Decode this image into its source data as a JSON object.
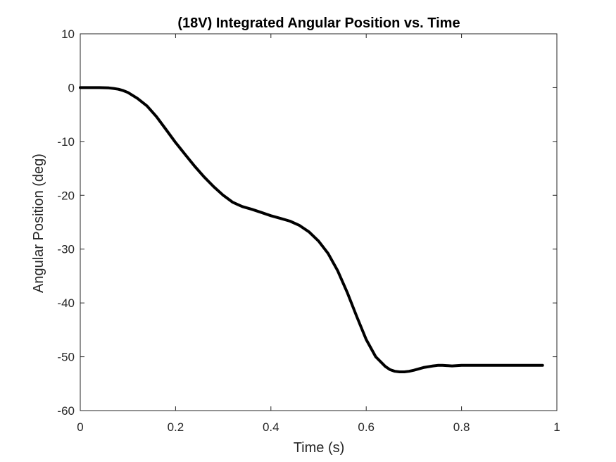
{
  "chart_data": {
    "type": "line",
    "title": "(18V) Integrated Angular Position vs. Time",
    "xlabel": "Time (s)",
    "ylabel": "Angular Position (deg)",
    "xlim": [
      0,
      1
    ],
    "ylim": [
      -60,
      10
    ],
    "xticks": [
      0,
      0.2,
      0.4,
      0.6,
      0.8,
      1
    ],
    "xtick_labels": [
      "0",
      "0.2",
      "0.4",
      "0.6",
      "0.8",
      "1"
    ],
    "yticks": [
      10,
      0,
      -10,
      -20,
      -30,
      -40,
      -50,
      -60
    ],
    "ytick_labels": [
      "10",
      "0",
      "-10",
      "-20",
      "-30",
      "-40",
      "-50",
      "-60"
    ],
    "grid": false,
    "line_color": "#000000",
    "series": [
      {
        "x": [
          0,
          0.02,
          0.04,
          0.06,
          0.07,
          0.08,
          0.09,
          0.1,
          0.12,
          0.14,
          0.16,
          0.18,
          0.2,
          0.22,
          0.24,
          0.26,
          0.28,
          0.3,
          0.32,
          0.33,
          0.34,
          0.36,
          0.38,
          0.4,
          0.42,
          0.44,
          0.46,
          0.48,
          0.5,
          0.52,
          0.54,
          0.56,
          0.58,
          0.6,
          0.62,
          0.64,
          0.65,
          0.66,
          0.67,
          0.68,
          0.69,
          0.7,
          0.72,
          0.74,
          0.75,
          0.76,
          0.78,
          0.8,
          0.85,
          0.9,
          0.95,
          0.97
        ],
        "y": [
          0,
          0,
          0,
          -0.05,
          -0.15,
          -0.3,
          -0.55,
          -0.9,
          -2.0,
          -3.4,
          -5.4,
          -7.8,
          -10.2,
          -12.4,
          -14.6,
          -16.6,
          -18.4,
          -20.0,
          -21.3,
          -21.7,
          -22.1,
          -22.6,
          -23.2,
          -23.8,
          -24.3,
          -24.8,
          -25.6,
          -26.8,
          -28.5,
          -30.8,
          -34.0,
          -38.0,
          -42.5,
          -46.8,
          -50.0,
          -51.8,
          -52.4,
          -52.7,
          -52.8,
          -52.8,
          -52.7,
          -52.5,
          -52.0,
          -51.7,
          -51.6,
          -51.6,
          -51.7,
          -51.6,
          -51.6,
          -51.6,
          -51.6,
          -51.6
        ]
      }
    ]
  }
}
